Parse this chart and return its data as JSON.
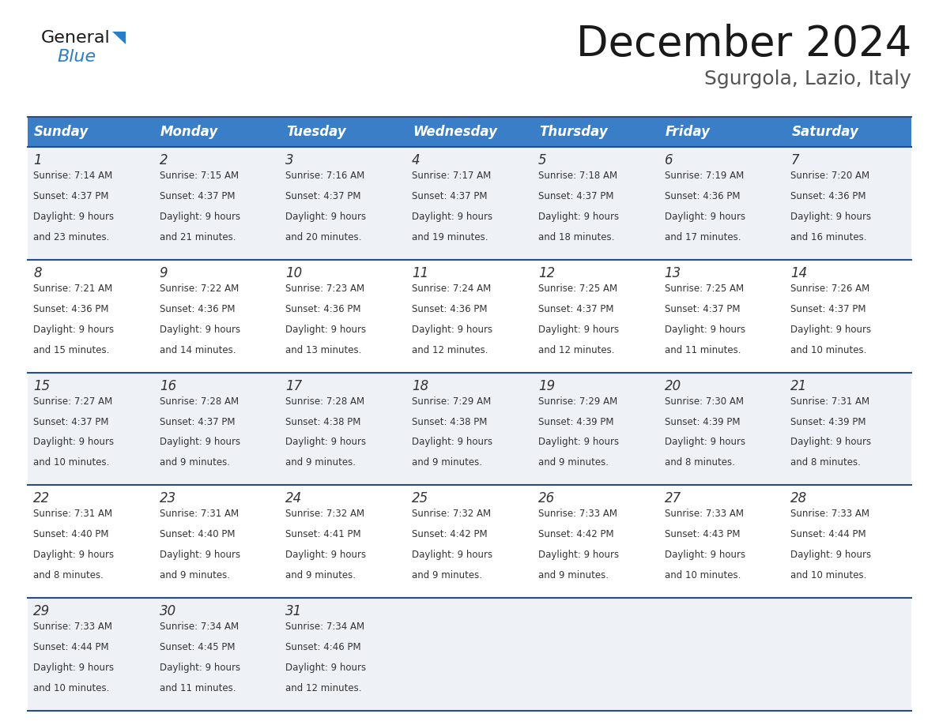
{
  "title": "December 2024",
  "subtitle": "Sgurgola, Lazio, Italy",
  "header_bg": "#3a7ec8",
  "header_text_color": "#ffffff",
  "days_of_week": [
    "Sunday",
    "Monday",
    "Tuesday",
    "Wednesday",
    "Thursday",
    "Friday",
    "Saturday"
  ],
  "row_bg_light": "#eef2f7",
  "row_bg_white": "#ffffff",
  "cell_border_color": "#2b4a8a",
  "calendar_data": [
    [
      {
        "day": 1,
        "sunrise": "7:14 AM",
        "sunset": "4:37 PM",
        "daylight_hours": 9,
        "daylight_minutes": 23
      },
      {
        "day": 2,
        "sunrise": "7:15 AM",
        "sunset": "4:37 PM",
        "daylight_hours": 9,
        "daylight_minutes": 21
      },
      {
        "day": 3,
        "sunrise": "7:16 AM",
        "sunset": "4:37 PM",
        "daylight_hours": 9,
        "daylight_minutes": 20
      },
      {
        "day": 4,
        "sunrise": "7:17 AM",
        "sunset": "4:37 PM",
        "daylight_hours": 9,
        "daylight_minutes": 19
      },
      {
        "day": 5,
        "sunrise": "7:18 AM",
        "sunset": "4:37 PM",
        "daylight_hours": 9,
        "daylight_minutes": 18
      },
      {
        "day": 6,
        "sunrise": "7:19 AM",
        "sunset": "4:36 PM",
        "daylight_hours": 9,
        "daylight_minutes": 17
      },
      {
        "day": 7,
        "sunrise": "7:20 AM",
        "sunset": "4:36 PM",
        "daylight_hours": 9,
        "daylight_minutes": 16
      }
    ],
    [
      {
        "day": 8,
        "sunrise": "7:21 AM",
        "sunset": "4:36 PM",
        "daylight_hours": 9,
        "daylight_minutes": 15
      },
      {
        "day": 9,
        "sunrise": "7:22 AM",
        "sunset": "4:36 PM",
        "daylight_hours": 9,
        "daylight_minutes": 14
      },
      {
        "day": 10,
        "sunrise": "7:23 AM",
        "sunset": "4:36 PM",
        "daylight_hours": 9,
        "daylight_minutes": 13
      },
      {
        "day": 11,
        "sunrise": "7:24 AM",
        "sunset": "4:36 PM",
        "daylight_hours": 9,
        "daylight_minutes": 12
      },
      {
        "day": 12,
        "sunrise": "7:25 AM",
        "sunset": "4:37 PM",
        "daylight_hours": 9,
        "daylight_minutes": 12
      },
      {
        "day": 13,
        "sunrise": "7:25 AM",
        "sunset": "4:37 PM",
        "daylight_hours": 9,
        "daylight_minutes": 11
      },
      {
        "day": 14,
        "sunrise": "7:26 AM",
        "sunset": "4:37 PM",
        "daylight_hours": 9,
        "daylight_minutes": 10
      }
    ],
    [
      {
        "day": 15,
        "sunrise": "7:27 AM",
        "sunset": "4:37 PM",
        "daylight_hours": 9,
        "daylight_minutes": 10
      },
      {
        "day": 16,
        "sunrise": "7:28 AM",
        "sunset": "4:37 PM",
        "daylight_hours": 9,
        "daylight_minutes": 9
      },
      {
        "day": 17,
        "sunrise": "7:28 AM",
        "sunset": "4:38 PM",
        "daylight_hours": 9,
        "daylight_minutes": 9
      },
      {
        "day": 18,
        "sunrise": "7:29 AM",
        "sunset": "4:38 PM",
        "daylight_hours": 9,
        "daylight_minutes": 9
      },
      {
        "day": 19,
        "sunrise": "7:29 AM",
        "sunset": "4:39 PM",
        "daylight_hours": 9,
        "daylight_minutes": 9
      },
      {
        "day": 20,
        "sunrise": "7:30 AM",
        "sunset": "4:39 PM",
        "daylight_hours": 9,
        "daylight_minutes": 8
      },
      {
        "day": 21,
        "sunrise": "7:31 AM",
        "sunset": "4:39 PM",
        "daylight_hours": 9,
        "daylight_minutes": 8
      }
    ],
    [
      {
        "day": 22,
        "sunrise": "7:31 AM",
        "sunset": "4:40 PM",
        "daylight_hours": 9,
        "daylight_minutes": 8
      },
      {
        "day": 23,
        "sunrise": "7:31 AM",
        "sunset": "4:40 PM",
        "daylight_hours": 9,
        "daylight_minutes": 9
      },
      {
        "day": 24,
        "sunrise": "7:32 AM",
        "sunset": "4:41 PM",
        "daylight_hours": 9,
        "daylight_minutes": 9
      },
      {
        "day": 25,
        "sunrise": "7:32 AM",
        "sunset": "4:42 PM",
        "daylight_hours": 9,
        "daylight_minutes": 9
      },
      {
        "day": 26,
        "sunrise": "7:33 AM",
        "sunset": "4:42 PM",
        "daylight_hours": 9,
        "daylight_minutes": 9
      },
      {
        "day": 27,
        "sunrise": "7:33 AM",
        "sunset": "4:43 PM",
        "daylight_hours": 9,
        "daylight_minutes": 10
      },
      {
        "day": 28,
        "sunrise": "7:33 AM",
        "sunset": "4:44 PM",
        "daylight_hours": 9,
        "daylight_minutes": 10
      }
    ],
    [
      {
        "day": 29,
        "sunrise": "7:33 AM",
        "sunset": "4:44 PM",
        "daylight_hours": 9,
        "daylight_minutes": 10
      },
      {
        "day": 30,
        "sunrise": "7:34 AM",
        "sunset": "4:45 PM",
        "daylight_hours": 9,
        "daylight_minutes": 11
      },
      {
        "day": 31,
        "sunrise": "7:34 AM",
        "sunset": "4:46 PM",
        "daylight_hours": 9,
        "daylight_minutes": 12
      },
      null,
      null,
      null,
      null
    ]
  ],
  "logo_general_color": "#1a1a1a",
  "logo_blue_color": "#2a7ec8",
  "logo_triangle_color": "#2a7ec8"
}
